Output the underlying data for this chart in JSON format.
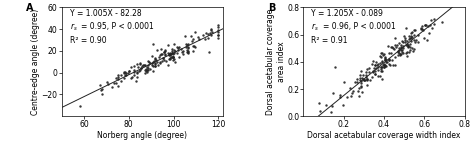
{
  "panel_A": {
    "label": "A",
    "eq_line": "Y = 1.005X - 82.28",
    "rs_val": "= 0.95, P < 0.0001",
    "r2_line": "R² = 0.90",
    "xlabel": "Norberg angle (degree)",
    "ylabel": "Centre-edge angle (degree)",
    "xlim": [
      50,
      122
    ],
    "ylim": [
      -40,
      60
    ],
    "xticks": [
      60,
      80,
      100,
      120
    ],
    "yticks": [
      -20,
      0,
      20,
      40,
      60
    ],
    "slope": 1.005,
    "intercept": -82.28,
    "seed": 42,
    "n_points": 180,
    "x_mean": 95,
    "x_std": 14,
    "noise_std": 4.5,
    "x_clip_min": 52,
    "x_clip_max": 120
  },
  "panel_B": {
    "label": "B",
    "eq_line": "Y = 1.205X - 0.089",
    "rs_val": "= 0.96, P < 0.0001",
    "r2_line": "R² = 0.91",
    "xlabel": "Dorsal acetabular coverage width index",
    "ylabel": "Dorsal acetabular coverage\narea index",
    "xlim": [
      0.0,
      0.8
    ],
    "ylim": [
      0.0,
      0.8
    ],
    "xticks": [
      0.2,
      0.4,
      0.6,
      0.8
    ],
    "yticks": [
      0.0,
      0.2,
      0.4,
      0.6,
      0.8
    ],
    "slope": 1.205,
    "intercept": -0.089,
    "seed": 99,
    "n_points": 200,
    "x_mean": 0.42,
    "x_std": 0.13,
    "noise_std": 0.045,
    "x_clip_min": 0.08,
    "x_clip_max": 0.75
  },
  "dot_color": "#222222",
  "dot_size": 3,
  "line_color": "#222222",
  "font_size": 5.5,
  "label_font_size": 7.0,
  "axis_font_size": 5.5
}
